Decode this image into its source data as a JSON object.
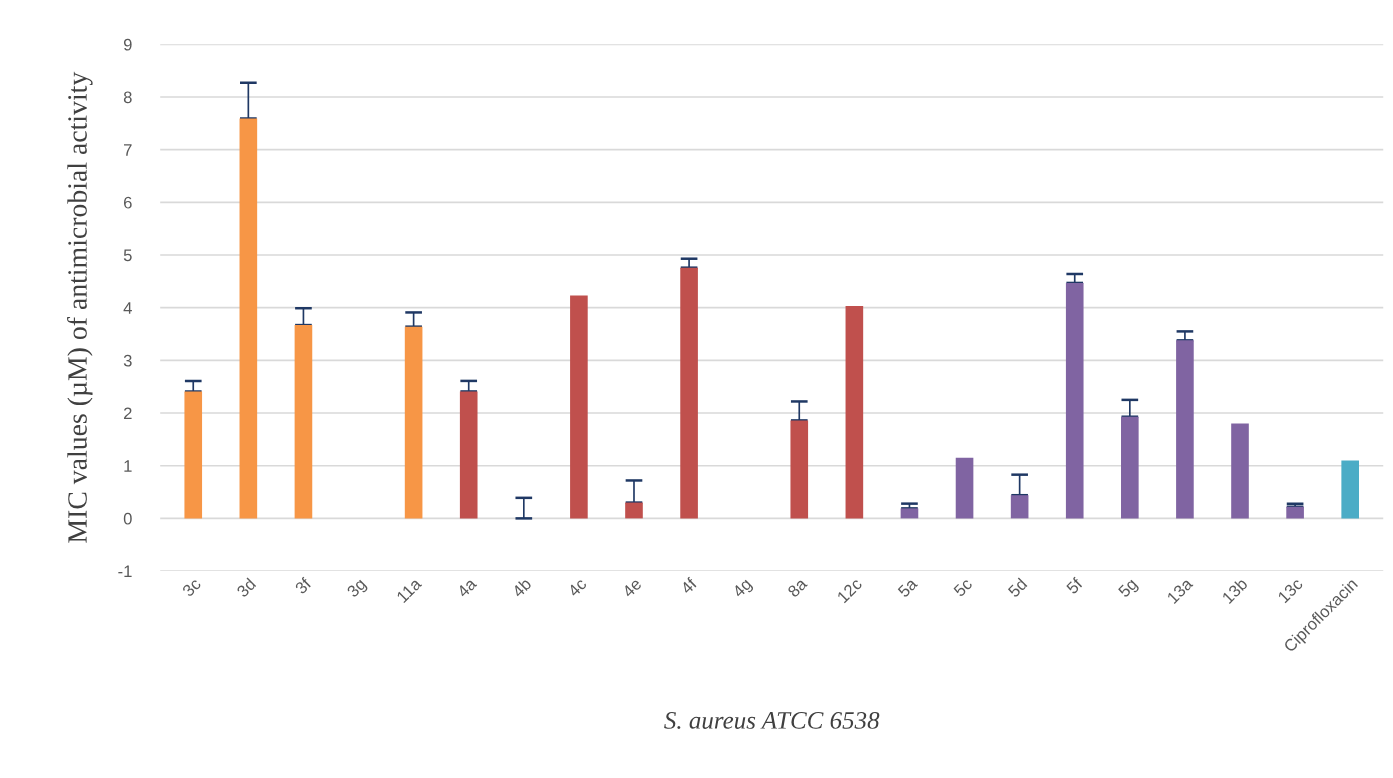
{
  "chart_data": {
    "type": "bar",
    "xlabel": "S. aureus ATCC 6538",
    "ylabel": "MIC values (µM) of antimicrobial activity",
    "categories": [
      "3c",
      "3d",
      "3f",
      "3g",
      "11a",
      "4a",
      "4b",
      "4c",
      "4e",
      "4f",
      "4g",
      "8a",
      "12c",
      "5a",
      "5c",
      "5d",
      "5f",
      "5g",
      "13a",
      "13b",
      "13c",
      "Ciprofloxacin"
    ],
    "values": [
      2.41,
      7.59,
      3.67,
      null,
      3.64,
      2.41,
      0,
      4.23,
      0.3,
      4.76,
      null,
      1.86,
      4.03,
      0.19,
      1.15,
      0.44,
      4.47,
      1.93,
      3.38,
      1.8,
      0.22,
      1.1
    ],
    "errors": [
      [
        2.41,
        2.61
      ],
      [
        7.59,
        8.27
      ],
      [
        3.67,
        3.99
      ],
      null,
      [
        3.64,
        3.91
      ],
      [
        2.41,
        2.61
      ],
      [
        0,
        0.39
      ],
      null,
      [
        0.3,
        0.72
      ],
      [
        4.76,
        4.93
      ],
      null,
      [
        1.86,
        2.22
      ],
      null,
      [
        0.19,
        0.28
      ],
      null,
      [
        0.44,
        0.83
      ],
      [
        4.47,
        4.64
      ],
      [
        1.93,
        2.25
      ],
      [
        3.38,
        3.55
      ],
      null,
      [
        0.22,
        0.28
      ],
      null
    ],
    "colors": [
      "#f79646",
      "#f79646",
      "#f79646",
      "#f79646",
      "#f79646",
      "#c0504d",
      "#c0504d",
      "#c0504d",
      "#c0504d",
      "#c0504d",
      "#c0504d",
      "#c0504d",
      "#c0504d",
      "#8064a2",
      "#8064a2",
      "#8064a2",
      "#8064a2",
      "#8064a2",
      "#8064a2",
      "#8064a2",
      "#8064a2",
      "#4bacc6"
    ],
    "ylim": [
      -1,
      9
    ],
    "yticks": [
      -1,
      0,
      1,
      2,
      3,
      4,
      5,
      6,
      7,
      8,
      9
    ],
    "grid": "y"
  }
}
